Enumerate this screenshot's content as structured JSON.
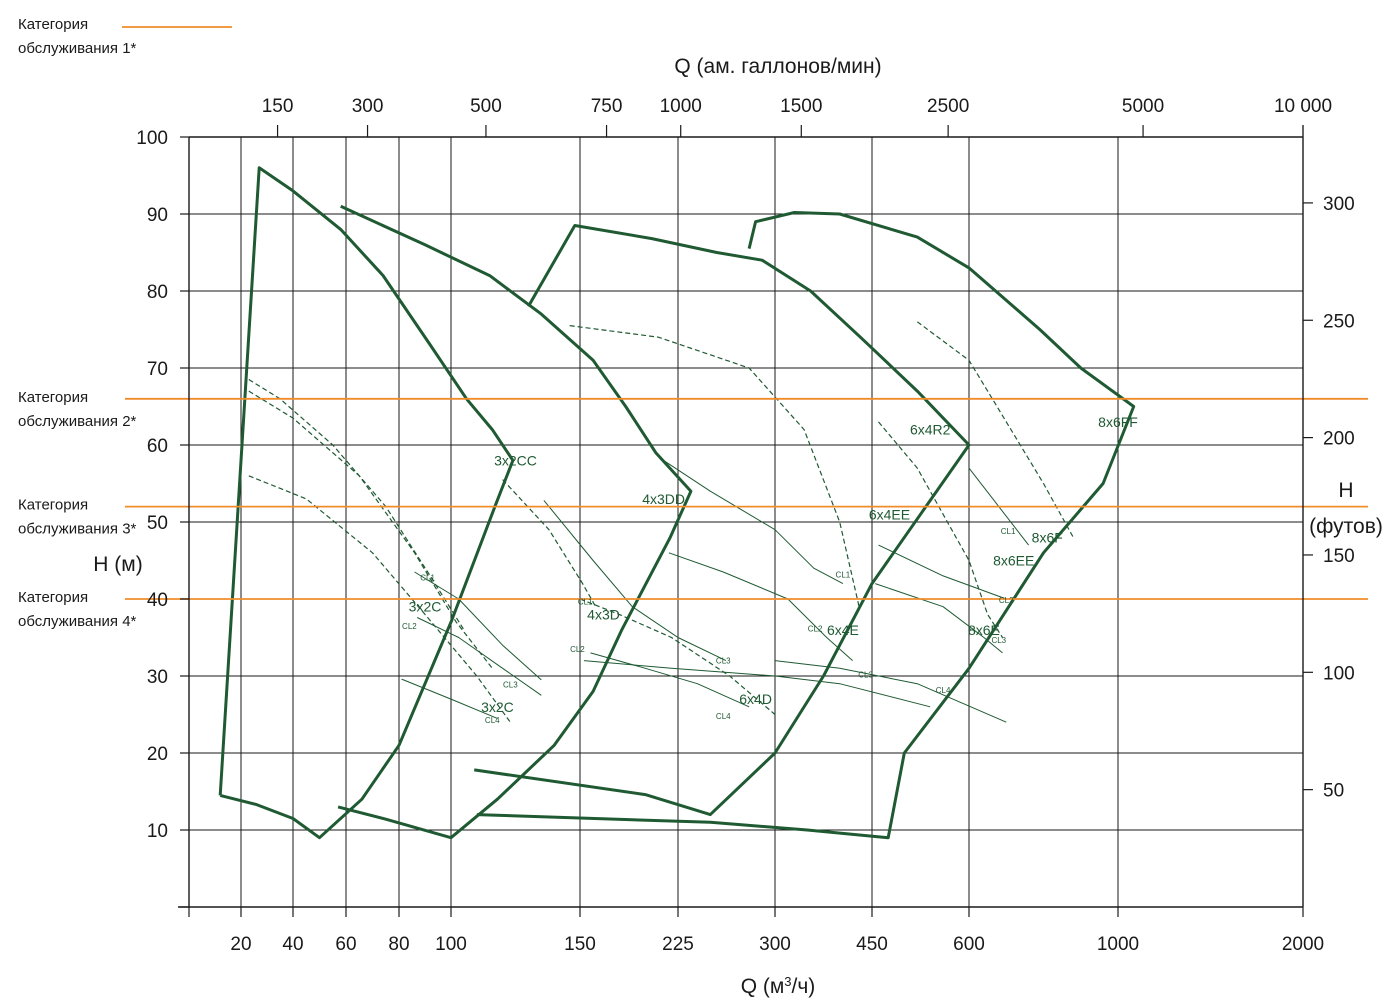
{
  "chart_data": {
    "type": "line",
    "title": "",
    "x_bottom": {
      "label": "Q (м³/ч)",
      "label_base": "Q (м",
      "label_sup": "3",
      "label_tail": "/ч)",
      "ticks": [
        20,
        40,
        60,
        80,
        100,
        150,
        225,
        300,
        450,
        600,
        1000,
        2000
      ]
    },
    "x_top": {
      "label": "Q (ам. галлонов/мин)",
      "ticks": [
        "150",
        "300",
        "500",
        "750",
        "1000",
        "1500",
        "2500",
        "5000",
        "10 000"
      ]
    },
    "y_left": {
      "label": "H (м)",
      "ticks": [
        10,
        20,
        30,
        40,
        50,
        60,
        70,
        80,
        90,
        100
      ],
      "ylim": [
        0,
        100
      ]
    },
    "y_right": {
      "label_line1": "H",
      "label_line2": "(футов)",
      "ticks": [
        50,
        100,
        150,
        200,
        250,
        300
      ]
    },
    "grid": true,
    "service_categories": [
      {
        "name": "Категория обслуживания 1*",
        "line1": "Категория",
        "line2": "обслуживания 1*",
        "head_m": null
      },
      {
        "name": "Категория обслуживания 2*",
        "line1": "Категория",
        "line2": "обслуживания 2*",
        "head_m": 66
      },
      {
        "name": "Категория обслуживания 3*",
        "line1": "Категория",
        "line2": "обслуживания 3*",
        "head_m": 52
      },
      {
        "name": "Категория обслуживания 4*",
        "line1": "Категория",
        "line2": "обслуживания 4*",
        "head_m": 40
      }
    ],
    "category_color": "#f08c2a",
    "curve_color": "#1f5a33",
    "pump_labels": [
      {
        "text": "3x2CC",
        "q": 125,
        "h": 58
      },
      {
        "text": "3x2C",
        "q": 90,
        "h": 39
      },
      {
        "text": "3x2C",
        "q": 118,
        "h": 26
      },
      {
        "text": "4x3DD",
        "q": 214,
        "h": 53
      },
      {
        "text": "4x3D",
        "q": 168,
        "h": 38
      },
      {
        "text": "6x4D",
        "q": 285,
        "h": 27
      },
      {
        "text": "6x4E",
        "q": 405,
        "h": 36
      },
      {
        "text": "6x4EE",
        "q": 477,
        "h": 51
      },
      {
        "text": "6x4R2",
        "q": 540,
        "h": 62
      },
      {
        "text": "8x6E",
        "q": 640,
        "h": 36
      },
      {
        "text": "8x6EE",
        "q": 720,
        "h": 45
      },
      {
        "text": "8x6F",
        "q": 810,
        "h": 48
      },
      {
        "text": "8x6FF",
        "q": 1000,
        "h": 63
      }
    ],
    "cl_labels": [
      {
        "text": "CL1",
        "q": 91,
        "h": 42.8
      },
      {
        "text": "CL2",
        "q": 84,
        "h": 36.5
      },
      {
        "text": "CL3",
        "q": 123,
        "h": 28.9
      },
      {
        "text": "CL4",
        "q": 116,
        "h": 24.3
      },
      {
        "text": "CL1",
        "q": 154,
        "h": 39.7
      },
      {
        "text": "CL2",
        "q": 149,
        "h": 33.5
      },
      {
        "text": "CL3",
        "q": 260,
        "h": 32.0
      },
      {
        "text": "CL4",
        "q": 260,
        "h": 24.8
      },
      {
        "text": "CL1",
        "q": 405,
        "h": 43.2
      },
      {
        "text": "CL2",
        "q": 362,
        "h": 36.2
      },
      {
        "text": "CL3",
        "q": 440,
        "h": 30.2
      },
      {
        "text": "CL4",
        "q": 560,
        "h": 28.2
      },
      {
        "text": "CL1",
        "q": 705,
        "h": 48.8
      },
      {
        "text": "CL2",
        "q": 700,
        "h": 39.9
      },
      {
        "text": "CL3",
        "q": 680,
        "h": 34.7
      }
    ]
  }
}
